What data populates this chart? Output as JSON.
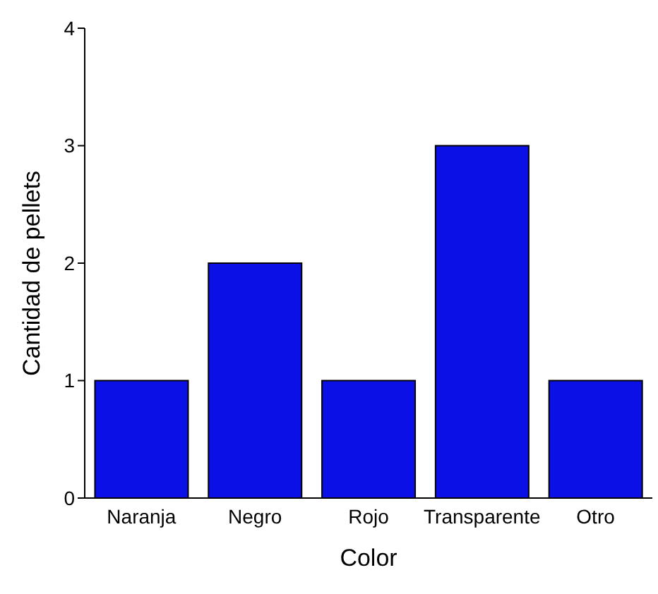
{
  "chart_data": {
    "type": "bar",
    "xlabel": "Color",
    "ylabel": "Cantidad de pellets",
    "categories": [
      "Naranja",
      "Negro",
      "Rojo",
      "Transparente",
      "Otro"
    ],
    "values": [
      1,
      2,
      1,
      3,
      1
    ],
    "color": "#0a10e6",
    "ylim": [
      0,
      4
    ],
    "yticks": [
      0,
      1,
      2,
      3,
      4
    ],
    "grid": false,
    "legend": false
  }
}
